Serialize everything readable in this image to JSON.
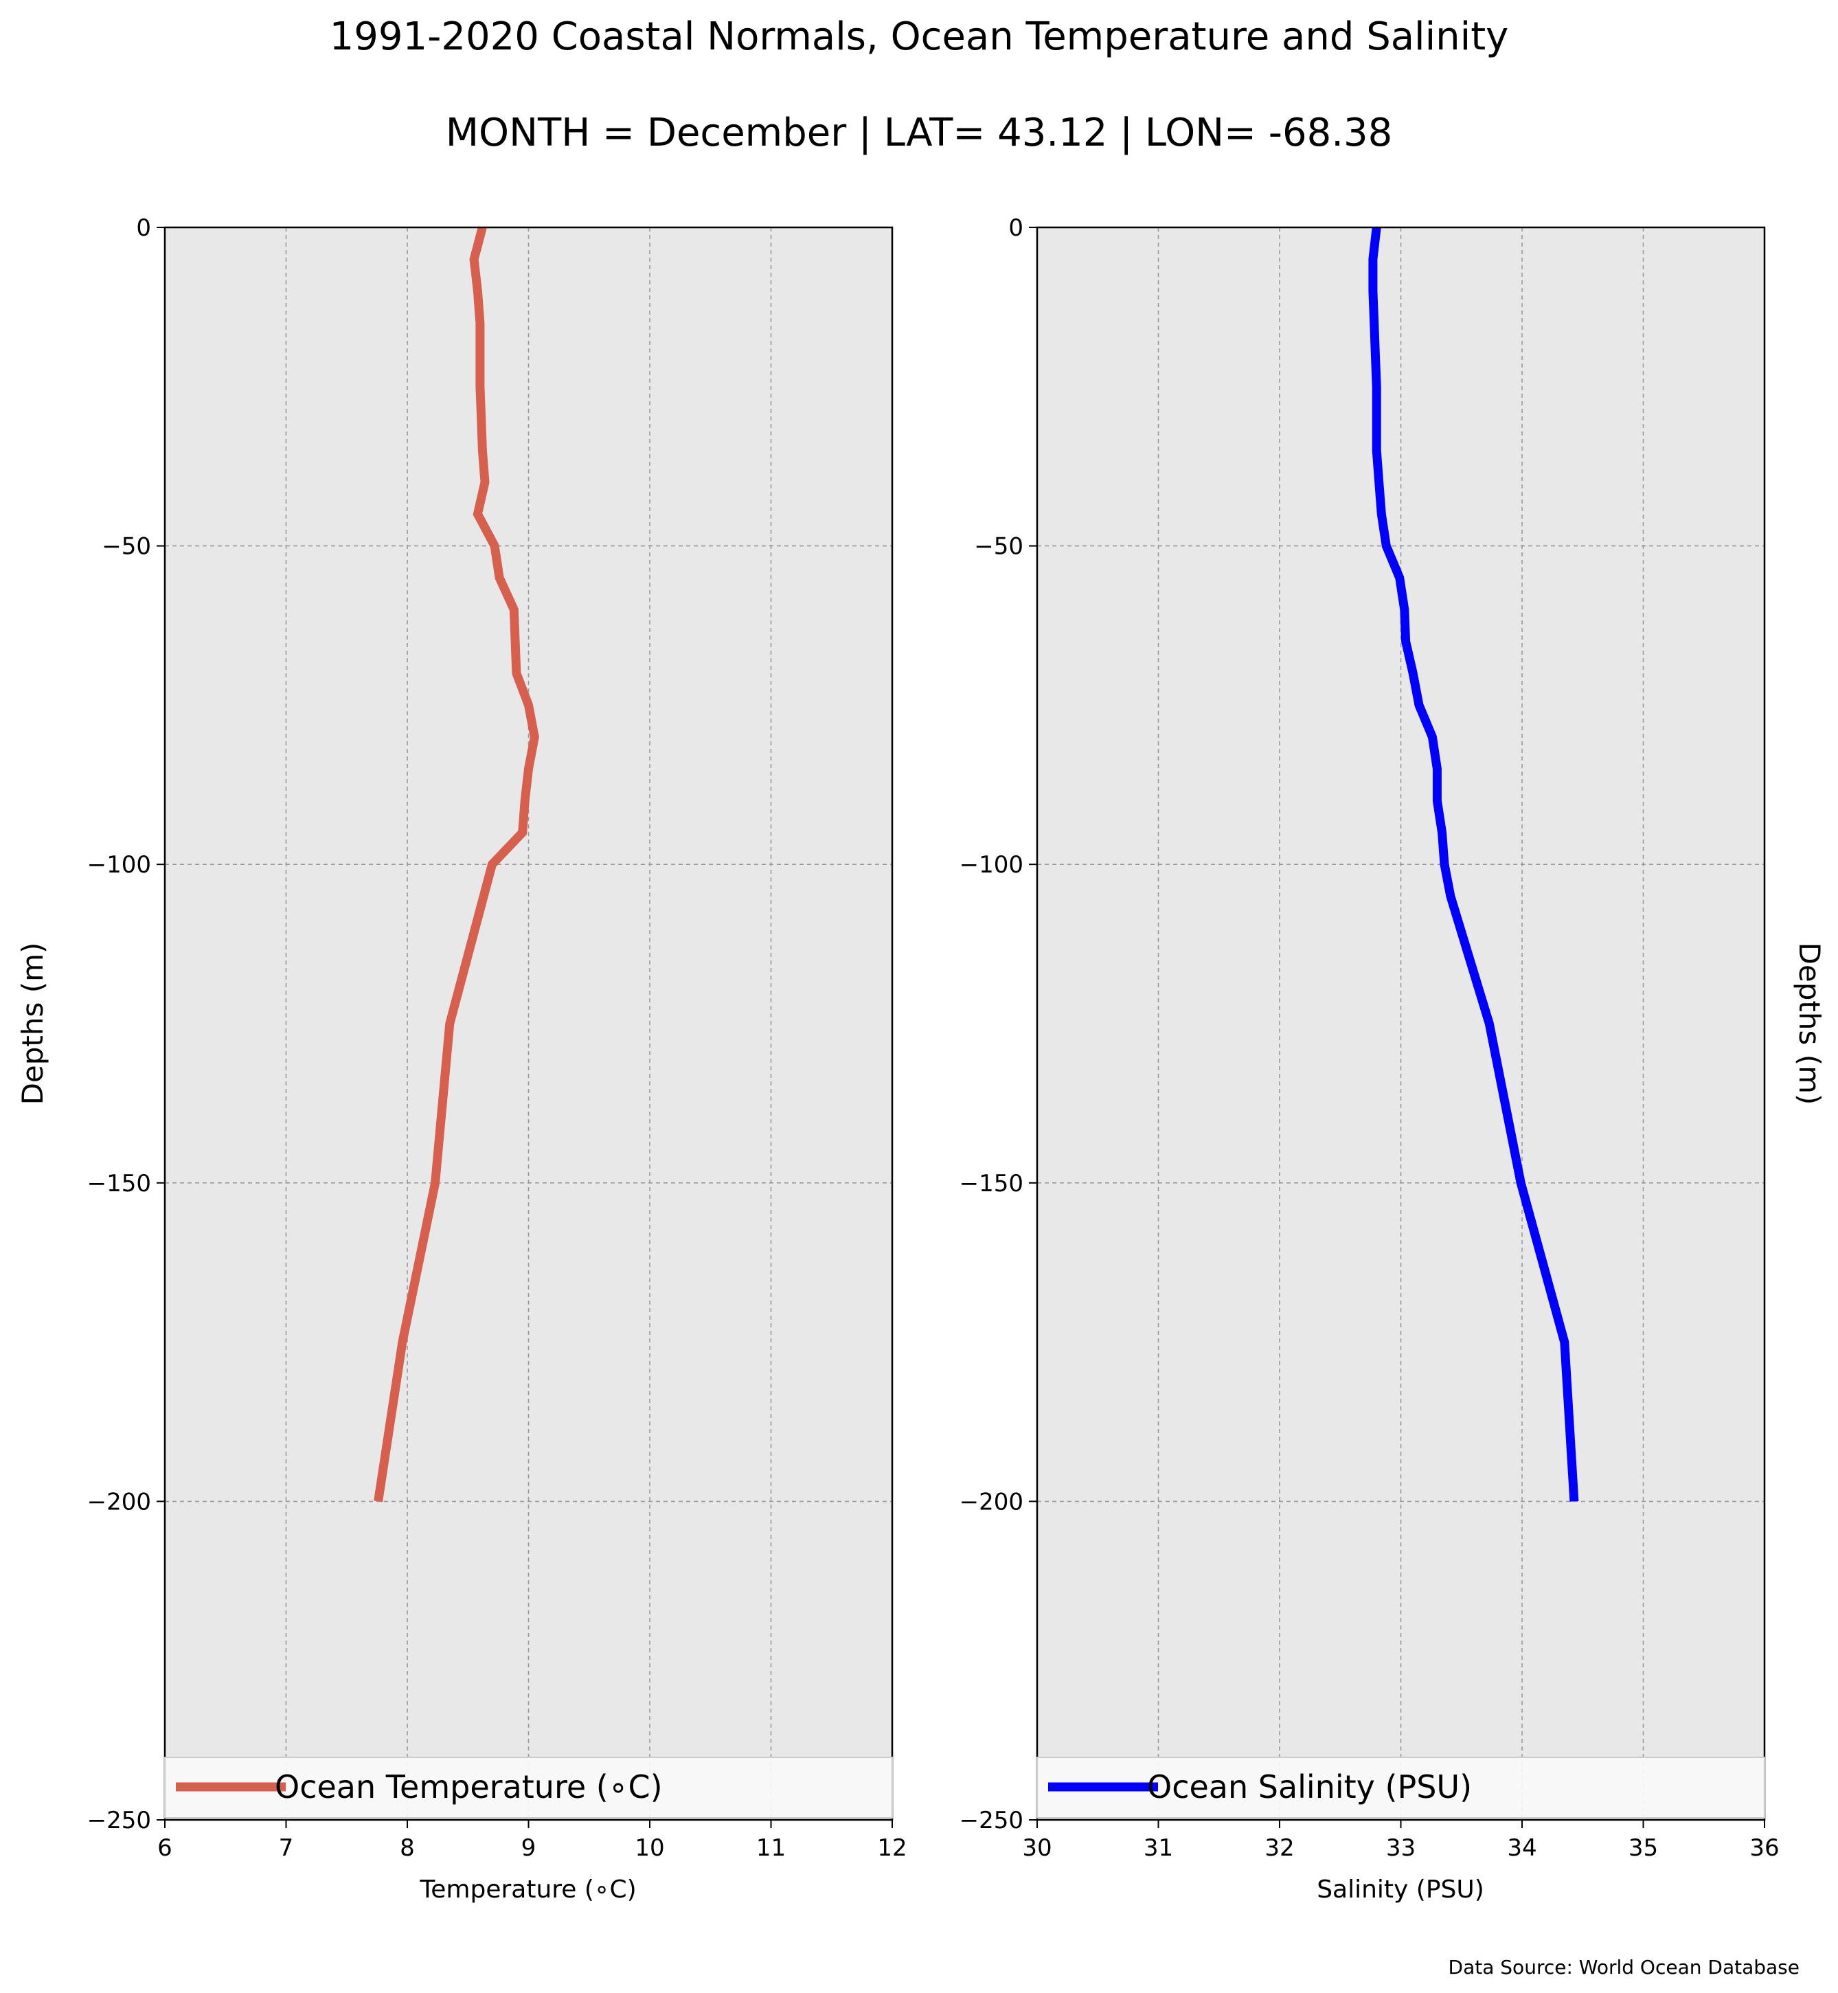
{
  "title": "1991-2020 Coastal Normals, Ocean Temperature and Salinity",
  "subtitle": "MONTH = December | LAT= 43.12 | LON= -68.38",
  "source": "Data Source: World Ocean Database",
  "chart_data": [
    {
      "type": "line",
      "xlabel": "Temperature (∘C)",
      "ylabel": "Depths (m)",
      "xlim": [
        6,
        12
      ],
      "ylim": [
        -250,
        0
      ],
      "xticks": [
        "6",
        "7",
        "8",
        "9",
        "10",
        "11",
        "12"
      ],
      "yticks": [
        "0",
        "−50",
        "−100",
        "−150",
        "−200",
        "−250"
      ],
      "grid": true,
      "legend_position": "lower center",
      "series": [
        {
          "name": "Ocean Temperature (∘C)",
          "color": "#d65f4e",
          "x": [
            8.62,
            8.55,
            8.58,
            8.6,
            8.6,
            8.6,
            8.61,
            8.62,
            8.64,
            8.58,
            8.72,
            8.76,
            8.88,
            8.89,
            8.9,
            9.0,
            9.05,
            9.0,
            8.97,
            8.95,
            8.7,
            8.35,
            8.23,
            7.96,
            7.76
          ],
          "y": [
            0,
            -5,
            -10,
            -15,
            -20,
            -25,
            -30,
            -35,
            -40,
            -45,
            -50,
            -55,
            -60,
            -65,
            -70,
            -75,
            -80,
            -85,
            -90,
            -95,
            -100,
            -125,
            -150,
            -175,
            -200
          ]
        }
      ]
    },
    {
      "type": "line",
      "xlabel": "Salinity (PSU)",
      "ylabel": "Depths (m)",
      "xlim": [
        30,
        36
      ],
      "ylim": [
        -250,
        0
      ],
      "xticks": [
        "30",
        "31",
        "32",
        "33",
        "34",
        "35",
        "36"
      ],
      "yticks": [
        "0",
        "−50",
        "−100",
        "−150",
        "−200",
        "−250"
      ],
      "grid": true,
      "legend_position": "lower center",
      "series": [
        {
          "name": "Ocean Salinity (PSU)",
          "color": "#0000ff",
          "x": [
            32.8,
            32.77,
            32.77,
            32.78,
            32.79,
            32.8,
            32.8,
            32.8,
            32.82,
            32.84,
            32.88,
            32.99,
            33.03,
            33.04,
            33.1,
            33.15,
            33.26,
            33.3,
            33.3,
            33.34,
            33.36,
            33.41,
            33.73,
            33.99,
            34.35,
            34.43
          ],
          "y": [
            0,
            -5,
            -10,
            -15,
            -20,
            -25,
            -30,
            -35,
            -40,
            -45,
            -50,
            -55,
            -60,
            -65,
            -70,
            -75,
            -80,
            -85,
            -90,
            -95,
            -100,
            -105,
            -125,
            -150,
            -175,
            -200
          ]
        }
      ]
    }
  ]
}
